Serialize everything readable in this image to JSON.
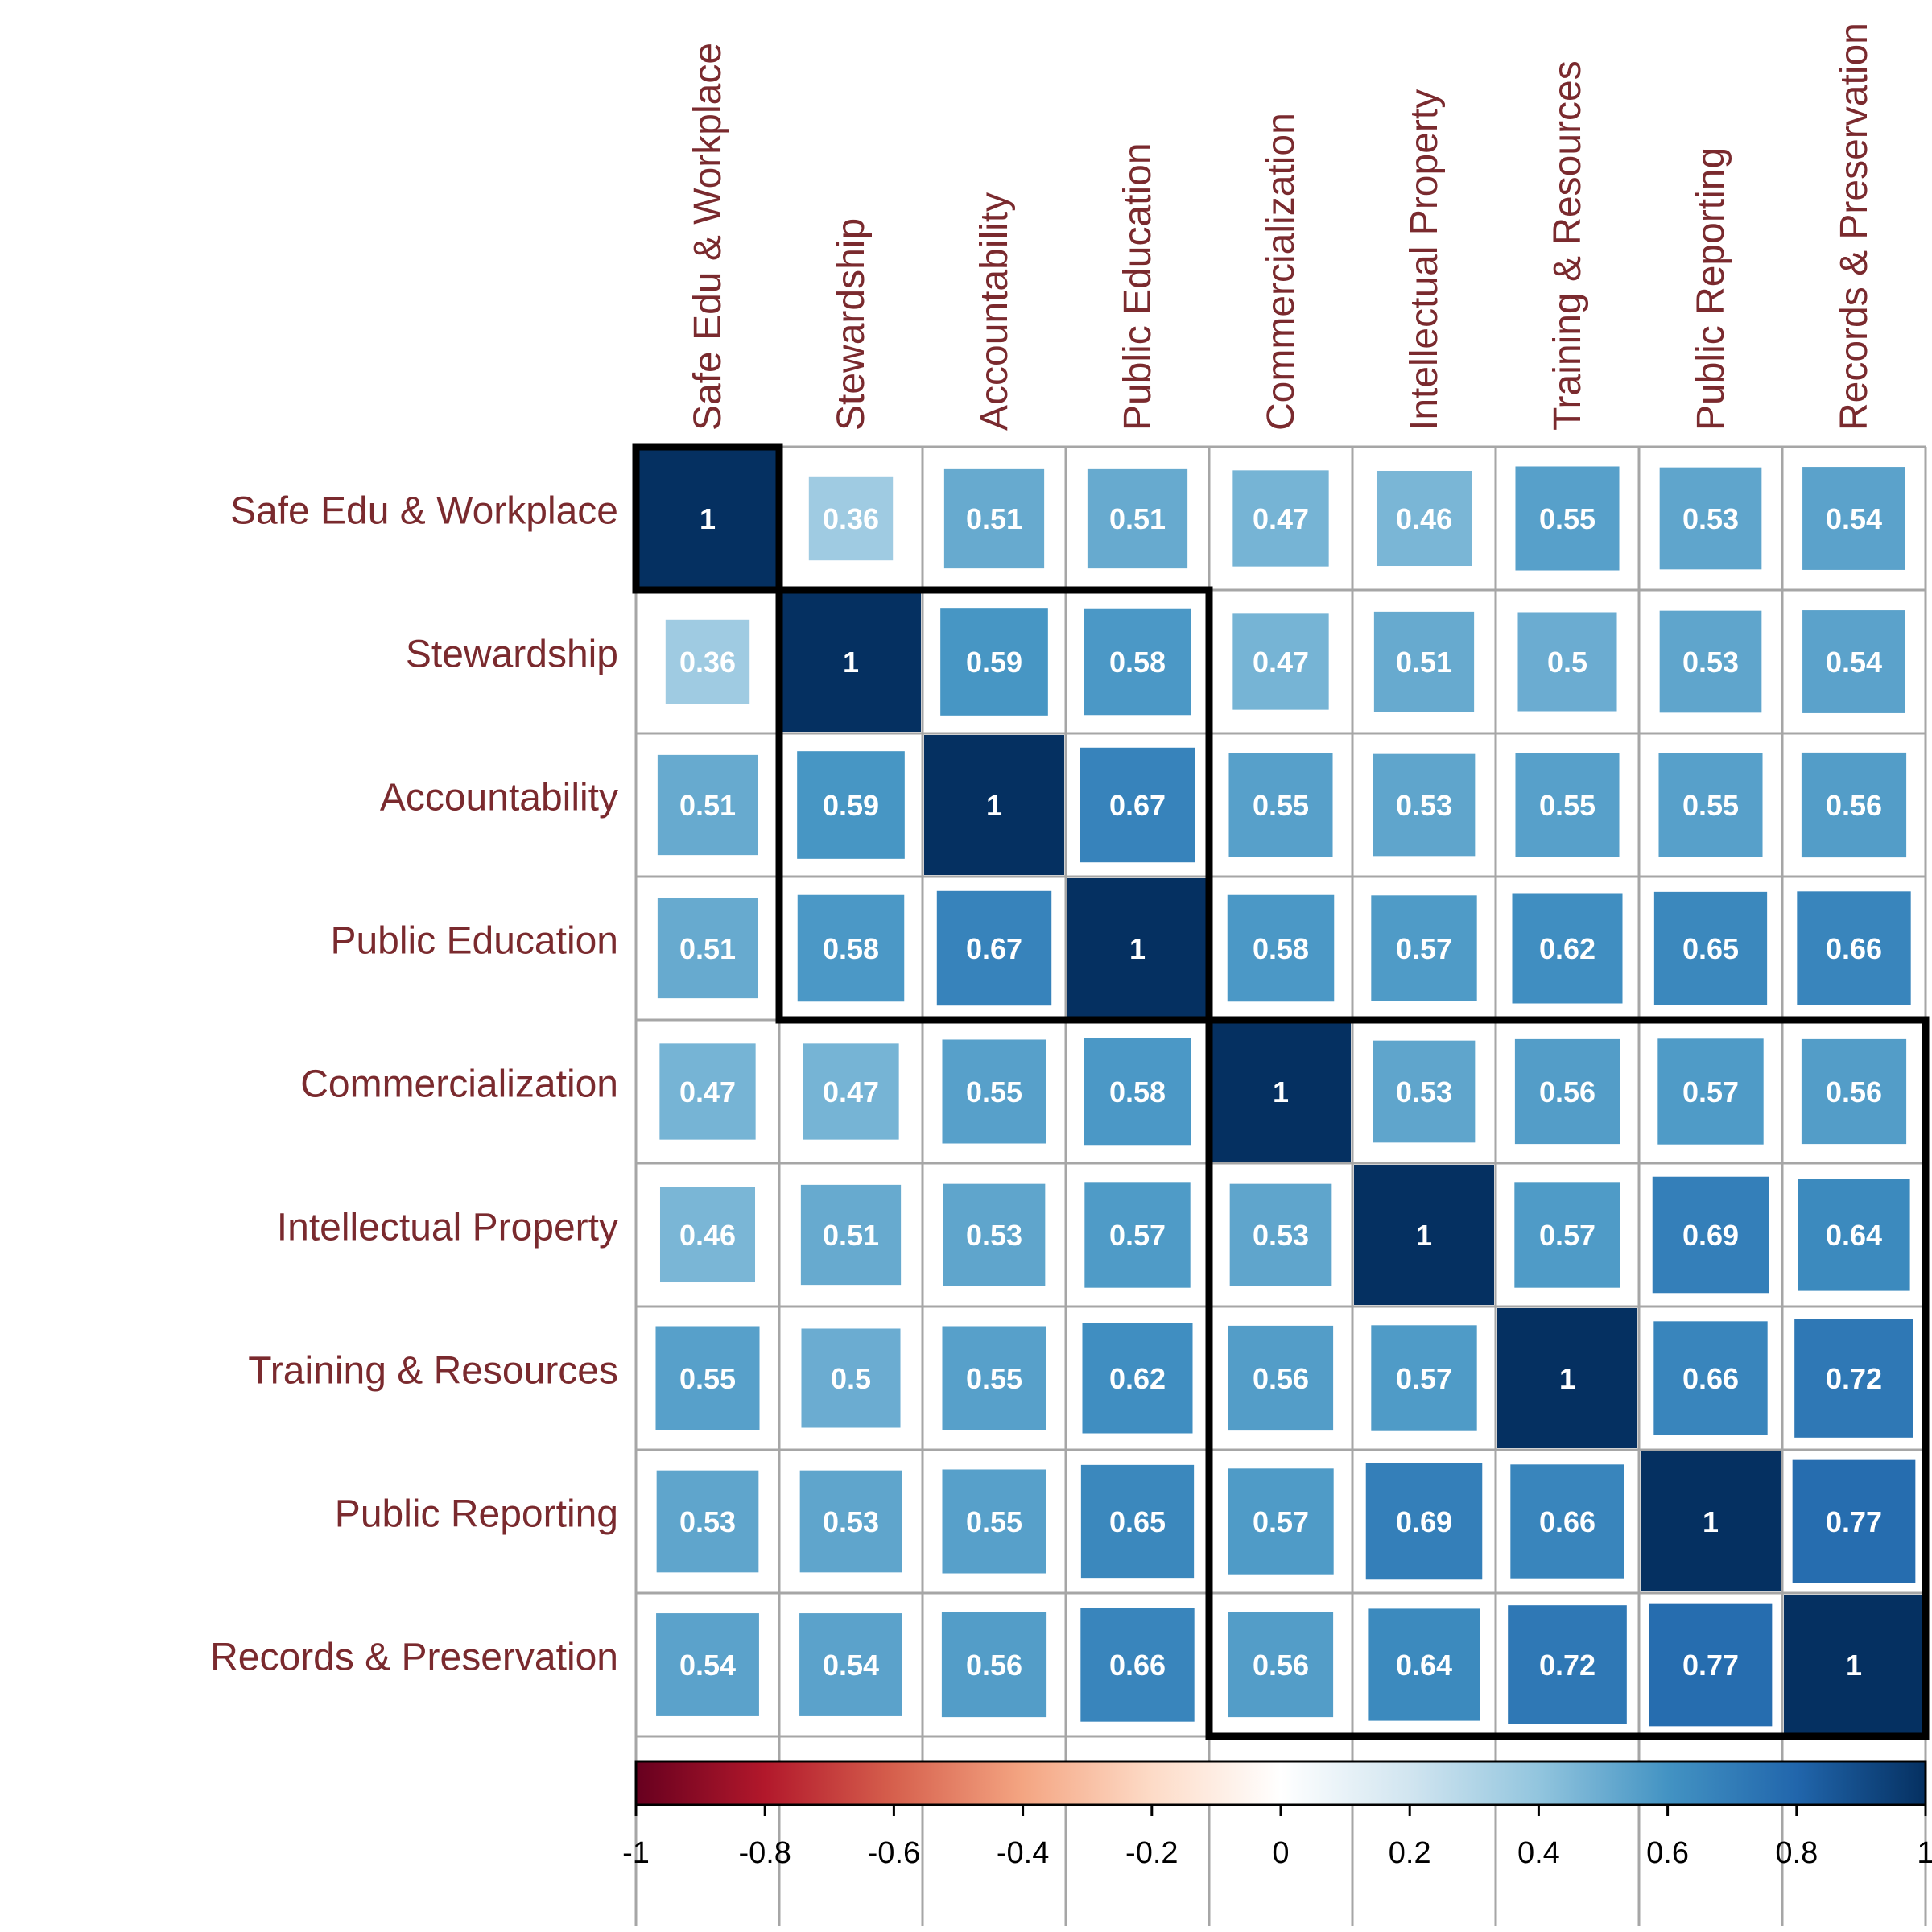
{
  "chart_data": {
    "type": "heatmap",
    "title": "",
    "variables": [
      "Safe Edu & Workplace",
      "Stewardship",
      "Accountability",
      "Public Education",
      "Commercialization",
      "Intellectual Property",
      "Training & Resources",
      "Public Reporting",
      "Records & Preservation"
    ],
    "matrix": [
      [
        1,
        0.36,
        0.51,
        0.51,
        0.47,
        0.46,
        0.55,
        0.53,
        0.54
      ],
      [
        0.36,
        1,
        0.59,
        0.58,
        0.47,
        0.51,
        0.5,
        0.53,
        0.54
      ],
      [
        0.51,
        0.59,
        1,
        0.67,
        0.55,
        0.53,
        0.55,
        0.55,
        0.56
      ],
      [
        0.51,
        0.58,
        0.67,
        1,
        0.58,
        0.57,
        0.62,
        0.65,
        0.66
      ],
      [
        0.47,
        0.47,
        0.55,
        0.58,
        1,
        0.53,
        0.56,
        0.57,
        0.56
      ],
      [
        0.46,
        0.51,
        0.53,
        0.57,
        0.53,
        1,
        0.57,
        0.69,
        0.64
      ],
      [
        0.55,
        0.5,
        0.55,
        0.62,
        0.56,
        0.57,
        1,
        0.66,
        0.72
      ],
      [
        0.53,
        0.53,
        0.55,
        0.65,
        0.57,
        0.69,
        0.66,
        1,
        0.77
      ],
      [
        0.54,
        0.54,
        0.56,
        0.66,
        0.56,
        0.64,
        0.72,
        0.77,
        1
      ]
    ],
    "cell_labels": [
      [
        "1",
        "0.36",
        "0.51",
        "0.51",
        "0.47",
        "0.46",
        "0.55",
        "0.53",
        "0.54"
      ],
      [
        "0.36",
        "1",
        "0.59",
        "0.58",
        "0.47",
        "0.51",
        "0.5",
        "0.53",
        "0.54"
      ],
      [
        "0.51",
        "0.59",
        "1",
        "0.67",
        "0.55",
        "0.53",
        "0.55",
        "0.55",
        "0.56"
      ],
      [
        "0.51",
        "0.58",
        "0.67",
        "1",
        "0.58",
        "0.57",
        "0.62",
        "0.65",
        "0.66"
      ],
      [
        "0.47",
        "0.47",
        "0.55",
        "0.58",
        "1",
        "0.53",
        "0.56",
        "0.57",
        "0.56"
      ],
      [
        "0.46",
        "0.51",
        "0.53",
        "0.57",
        "0.53",
        "1",
        "0.57",
        "0.69",
        "0.64"
      ],
      [
        "0.55",
        "0.5",
        "0.55",
        "0.62",
        "0.56",
        "0.57",
        "1",
        "0.66",
        "0.72"
      ],
      [
        "0.53",
        "0.53",
        "0.55",
        "0.65",
        "0.57",
        "0.69",
        "0.66",
        "1",
        "0.77"
      ],
      [
        "0.54",
        "0.54",
        "0.56",
        "0.66",
        "0.56",
        "0.64",
        "0.72",
        "0.77",
        "1"
      ]
    ],
    "clusters": [
      {
        "start": 1,
        "end": 1
      },
      {
        "start": 2,
        "end": 4
      },
      {
        "start": 5,
        "end": 9
      }
    ],
    "colorbar": {
      "range": [
        -1,
        1
      ],
      "ticks": [
        -1,
        -0.8,
        -0.6,
        -0.4,
        -0.2,
        0,
        0.2,
        0.4,
        0.6,
        0.8,
        1
      ],
      "tick_labels": [
        "-1",
        "-0.8",
        "-0.6",
        "-0.4",
        "-0.2",
        "0",
        "0.2",
        "0.4",
        "0.6",
        "0.8",
        "1"
      ],
      "colors": [
        "#67001f",
        "#b2182b",
        "#d6604d",
        "#f4a582",
        "#fddbc7",
        "#ffffff",
        "#d1e5f0",
        "#92c5de",
        "#4393c3",
        "#2166ac",
        "#053061"
      ]
    },
    "label_color": "#7a2a2e",
    "grid": true
  }
}
